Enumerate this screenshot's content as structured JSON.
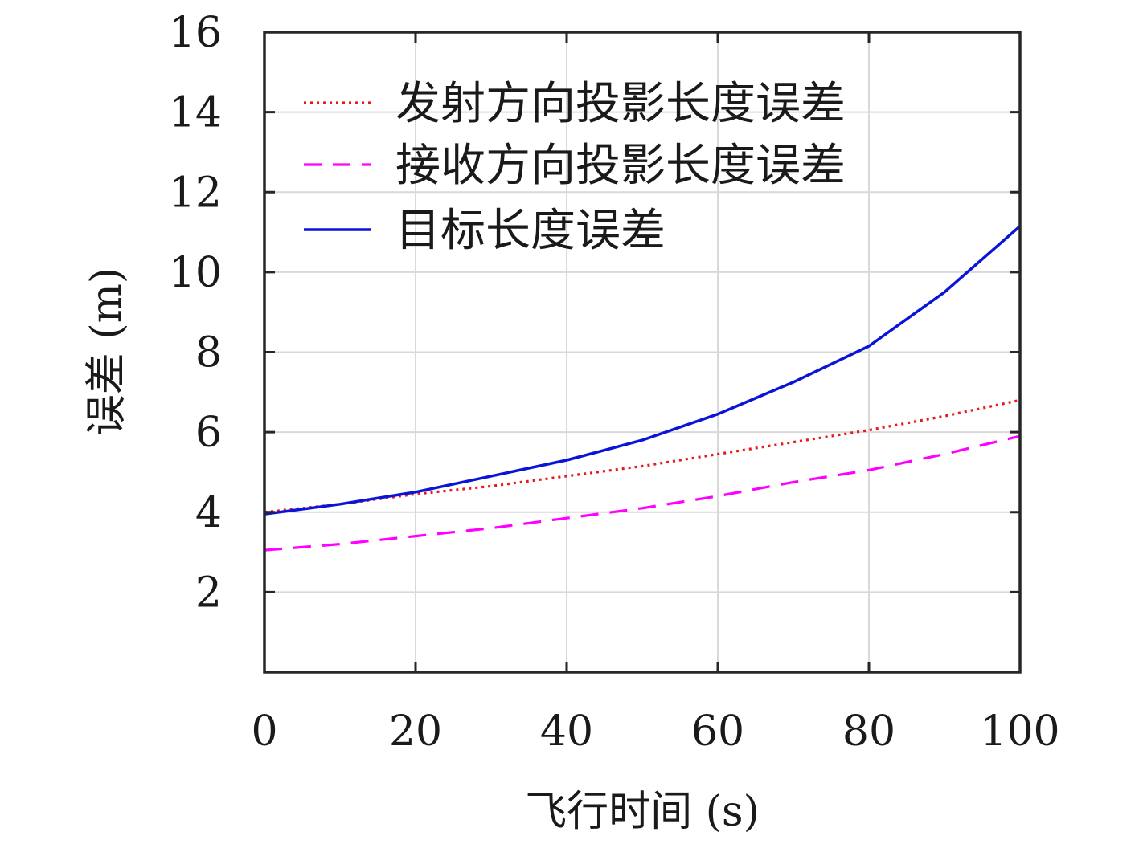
{
  "chart_data": {
    "type": "line",
    "title": "",
    "xlabel": "飞行时间 (s)",
    "ylabel": "误差 (m)",
    "xlim": [
      0,
      100
    ],
    "ylim": [
      0,
      16
    ],
    "grid": true,
    "legend_position": "top-left",
    "x_ticks": [
      "0",
      "20",
      "40",
      "60",
      "80",
      "100"
    ],
    "y_ticks": [
      "2",
      "4",
      "6",
      "8",
      "10",
      "12",
      "14",
      "16"
    ],
    "x": [
      0,
      10,
      20,
      30,
      40,
      50,
      60,
      70,
      80,
      90,
      100
    ],
    "series": [
      {
        "name": "发射方向投影长度误差",
        "color": "#e8191a",
        "dash": "dotted",
        "values": [
          4.0,
          4.2,
          4.45,
          4.65,
          4.9,
          5.15,
          5.45,
          5.75,
          6.05,
          6.4,
          6.8
        ]
      },
      {
        "name": "接收方向投影长度误差",
        "color": "#ff00ff",
        "dash": "dashed",
        "values": [
          3.05,
          3.2,
          3.4,
          3.6,
          3.85,
          4.1,
          4.4,
          4.75,
          5.05,
          5.45,
          5.9
        ]
      },
      {
        "name": "目标长度误差",
        "color": "#0a14d6",
        "dash": "solid",
        "values": [
          3.95,
          4.2,
          4.5,
          4.9,
          5.3,
          5.8,
          6.45,
          7.25,
          8.15,
          9.5,
          11.15
        ]
      }
    ]
  }
}
